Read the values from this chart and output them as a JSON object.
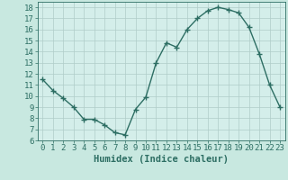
{
  "x": [
    0,
    1,
    2,
    3,
    4,
    5,
    6,
    7,
    8,
    9,
    10,
    11,
    12,
    13,
    14,
    15,
    16,
    17,
    18,
    19,
    20,
    21,
    22,
    23
  ],
  "y": [
    11.5,
    10.5,
    9.8,
    9.0,
    7.9,
    7.9,
    7.4,
    6.7,
    6.5,
    8.8,
    9.9,
    13.0,
    14.8,
    14.4,
    16.0,
    17.0,
    17.7,
    18.0,
    17.8,
    17.5,
    16.2,
    13.8,
    11.0,
    9.0
  ],
  "line_color": "#2d6e63",
  "marker": "+",
  "markersize": 4,
  "markeredgewidth": 1.0,
  "linewidth": 1.0,
  "bg_color": "#c8e8e0",
  "plot_bg_color": "#d4eeea",
  "grid_color": "#b0ccc8",
  "xlabel": "Humidex (Indice chaleur)",
  "xlim": [
    -0.5,
    23.5
  ],
  "ylim": [
    6,
    18.5
  ],
  "xticks": [
    0,
    1,
    2,
    3,
    4,
    5,
    6,
    7,
    8,
    9,
    10,
    11,
    12,
    13,
    14,
    15,
    16,
    17,
    18,
    19,
    20,
    21,
    22,
    23
  ],
  "yticks": [
    6,
    7,
    8,
    9,
    10,
    11,
    12,
    13,
    14,
    15,
    16,
    17,
    18
  ],
  "tick_color": "#2d6e63",
  "label_color": "#2d6e63",
  "xlabel_fontsize": 7.5,
  "tick_fontsize": 6.5
}
